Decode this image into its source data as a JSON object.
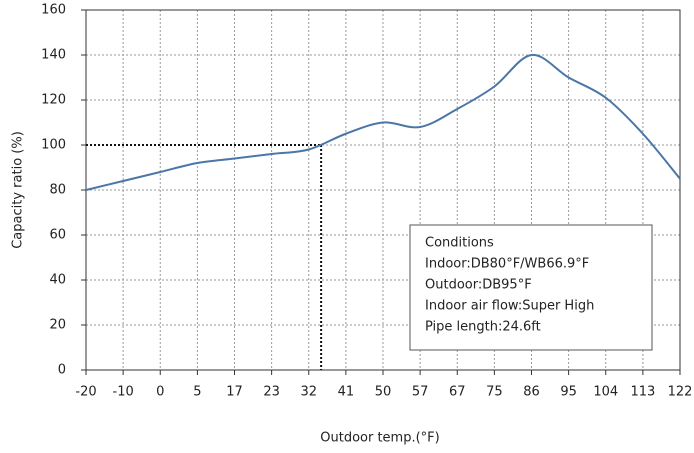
{
  "chart_data": {
    "type": "line",
    "x_label": "Outdoor temp.(°F)",
    "y_label": "Capacity ratio (%)",
    "categories": [
      -20,
      -10,
      0,
      5,
      17,
      23,
      32,
      41,
      50,
      57,
      67,
      75,
      86,
      95,
      104,
      113,
      122
    ],
    "series": [
      {
        "name": "Capacity ratio",
        "color": "#4a76a8",
        "values": [
          80,
          84,
          88,
          92,
          94,
          96,
          98,
          105,
          110,
          108,
          116,
          126,
          140,
          130,
          121,
          105,
          85
        ]
      }
    ],
    "ylim": [
      0,
      160
    ],
    "yticks": [
      0,
      20,
      40,
      60,
      80,
      100,
      120,
      140,
      160
    ],
    "grid": true,
    "reference_point": {
      "x": 35,
      "y": 100
    },
    "annotation": {
      "lines": [
        "Conditions",
        "Indoor:DB80°F/WB66.9°F",
        "Outdoor:DB95°F",
        "Indoor air flow:Super High",
        "Pipe length:24.6ft"
      ]
    }
  }
}
